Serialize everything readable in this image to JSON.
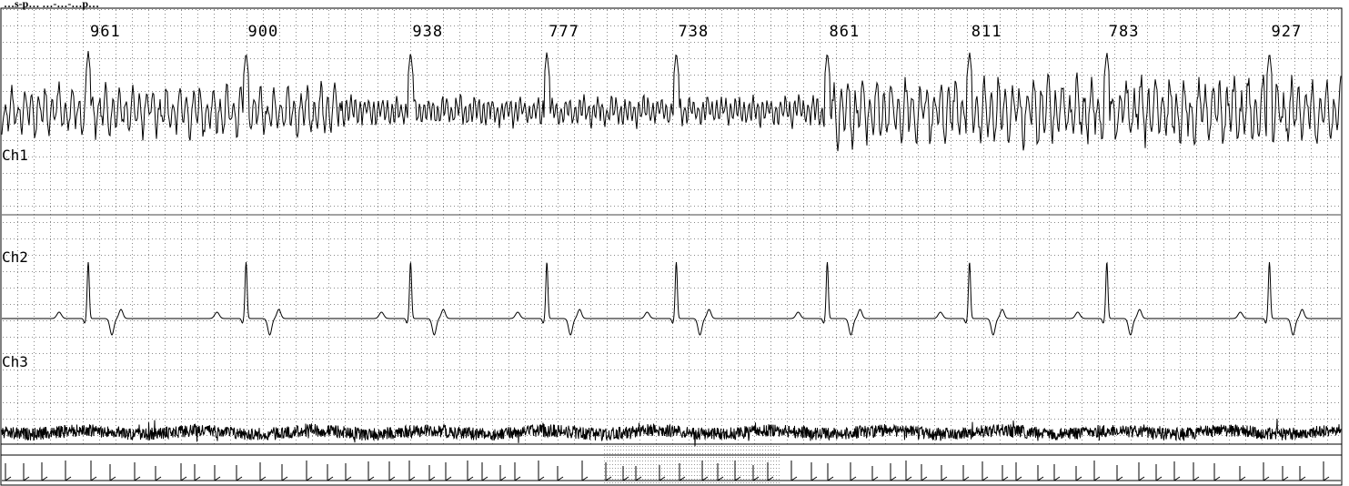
{
  "header": {
    "title": "…s-p… …-…-…p…"
  },
  "chart_data": {
    "type": "line",
    "title": "",
    "channels": [
      "Ch1",
      "Ch2",
      "Ch3"
    ],
    "rr_intervals_ms": [
      961,
      900,
      938,
      777,
      738,
      861,
      811,
      783,
      927
    ],
    "grid": true,
    "colors": {
      "trace": "#000000",
      "grid_dot": "#8a8a8a",
      "border": "#000000",
      "background": "#ffffff"
    }
  }
}
